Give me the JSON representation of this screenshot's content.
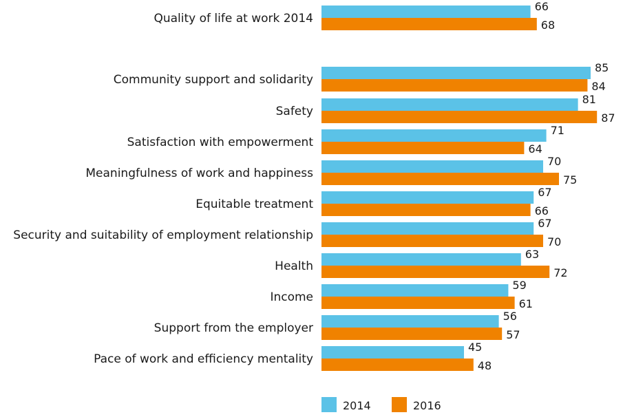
{
  "chart_data": {
    "type": "bar",
    "orientation": "horizontal",
    "title": "",
    "xlabel": "",
    "ylabel": "",
    "xlim": [
      0,
      100
    ],
    "grid": false,
    "legend_position": "bottom",
    "categories": [
      "Quality of life at work 2014",
      "Community support and solidarity",
      "Safety",
      "Satisfaction with empowerment",
      "Meaningfulness of work and happiness",
      "Equitable treatment",
      "Security and suitability of employment relationship",
      "Health",
      "Income",
      "Support from the employer",
      "Pace of work and efficiency mentality"
    ],
    "series": [
      {
        "name": "2014",
        "color": "#5bc2e7",
        "values": [
          66,
          85,
          81,
          71,
          70,
          67,
          67,
          63,
          59,
          56,
          45
        ]
      },
      {
        "name": "2016",
        "color": "#f08200",
        "values": [
          68,
          84,
          87,
          64,
          75,
          66,
          70,
          72,
          61,
          57,
          48
        ]
      }
    ]
  }
}
